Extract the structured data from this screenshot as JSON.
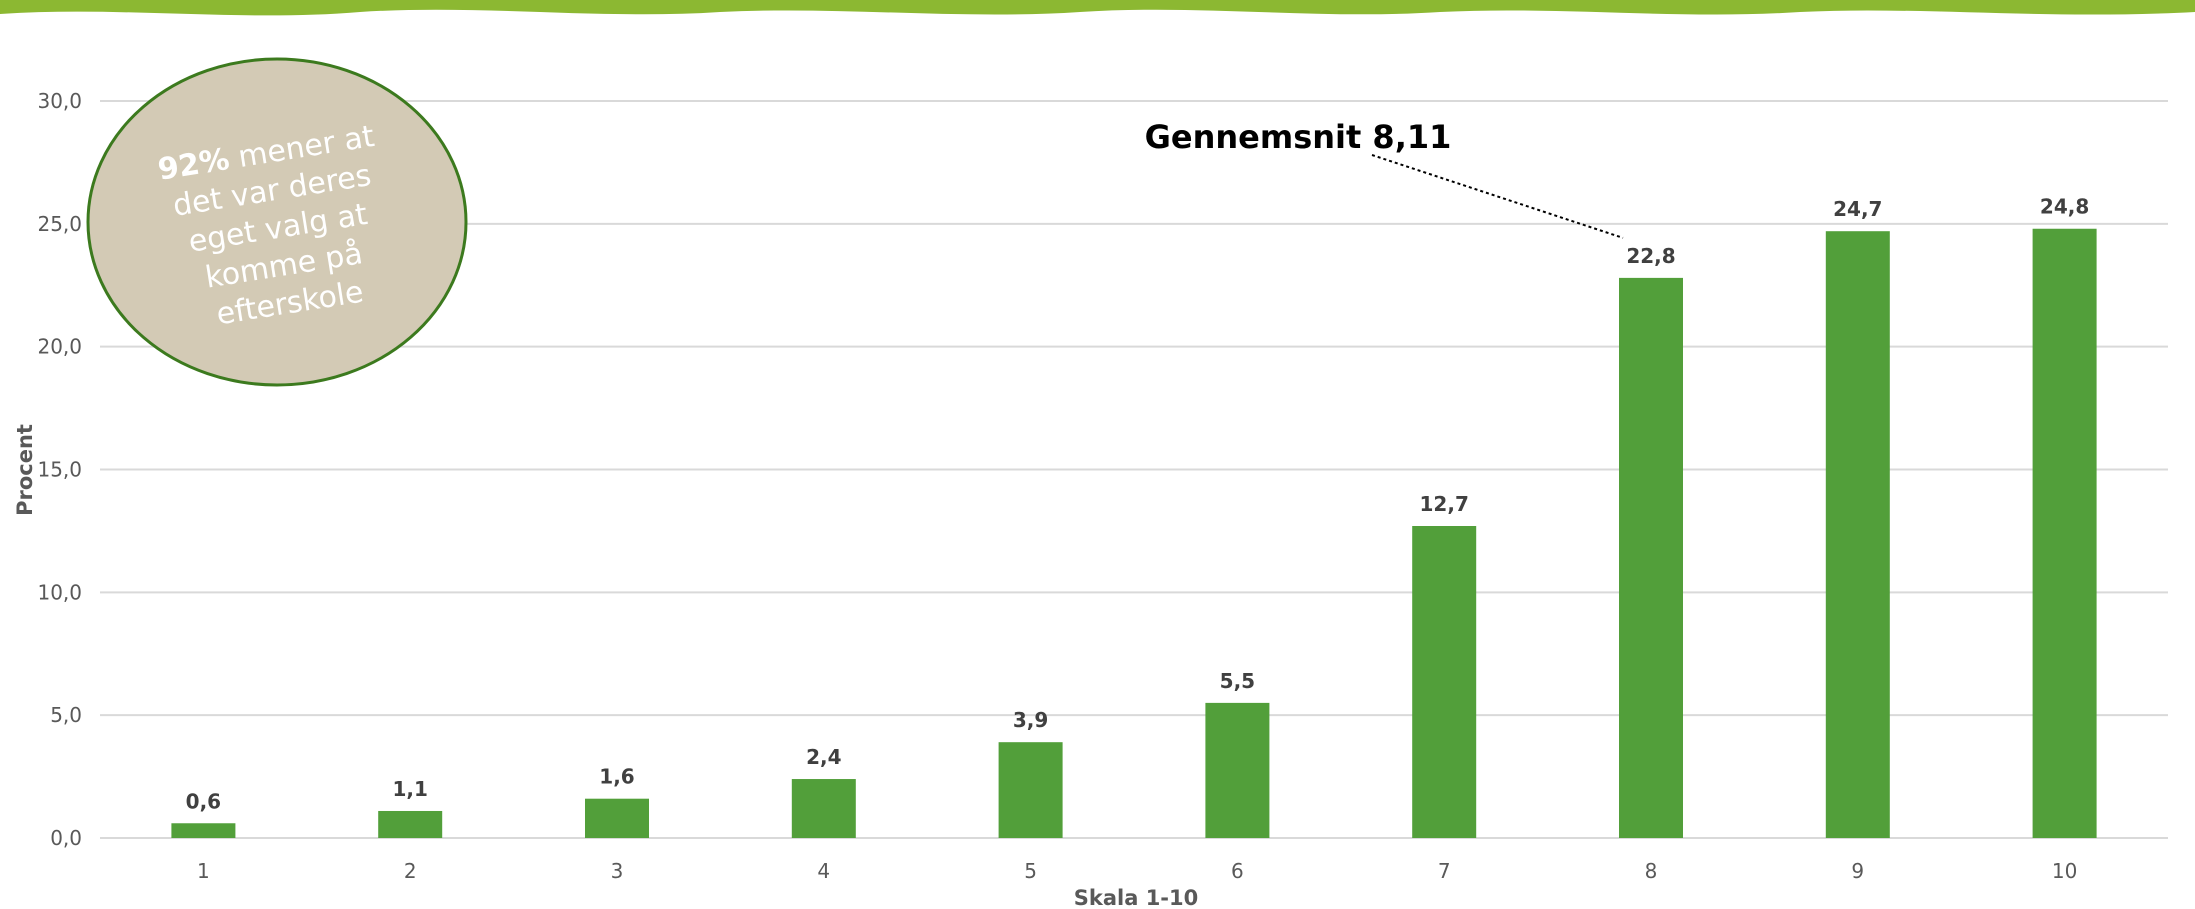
{
  "colors": {
    "bar": "#529F3A",
    "top_band": "#8CB832",
    "grid": "#D9D9D9",
    "bubble_fill": "#D3CAB5",
    "bubble_stroke": "#3C7A1E"
  },
  "chart_data": {
    "type": "bar",
    "xlabel": "Skala 1-10",
    "ylabel": "Procent",
    "ylim": [
      0,
      30
    ],
    "y_ticks": [
      "0,0",
      "5,0",
      "10,0",
      "15,0",
      "20,0",
      "25,0",
      "30,0"
    ],
    "grid": true,
    "categories": [
      "1",
      "2",
      "3",
      "4",
      "5",
      "6",
      "7",
      "8",
      "9",
      "10"
    ],
    "values": [
      0.6,
      1.1,
      1.6,
      2.4,
      3.9,
      5.5,
      12.7,
      22.8,
      24.7,
      24.8
    ],
    "value_labels": [
      "0,6",
      "1,1",
      "1,6",
      "2,4",
      "3,9",
      "5,5",
      "12,7",
      "22,8",
      "24,7",
      "24,8"
    ],
    "annotation": {
      "text": "Gennemsnit 8,11",
      "points_to_category": "8"
    }
  },
  "bubble": {
    "highlight": "92%",
    "rest_line1": " mener at",
    "line2": "det var deres",
    "line3": "eget valg at",
    "line4": "komme på",
    "line5": "efterskole"
  }
}
